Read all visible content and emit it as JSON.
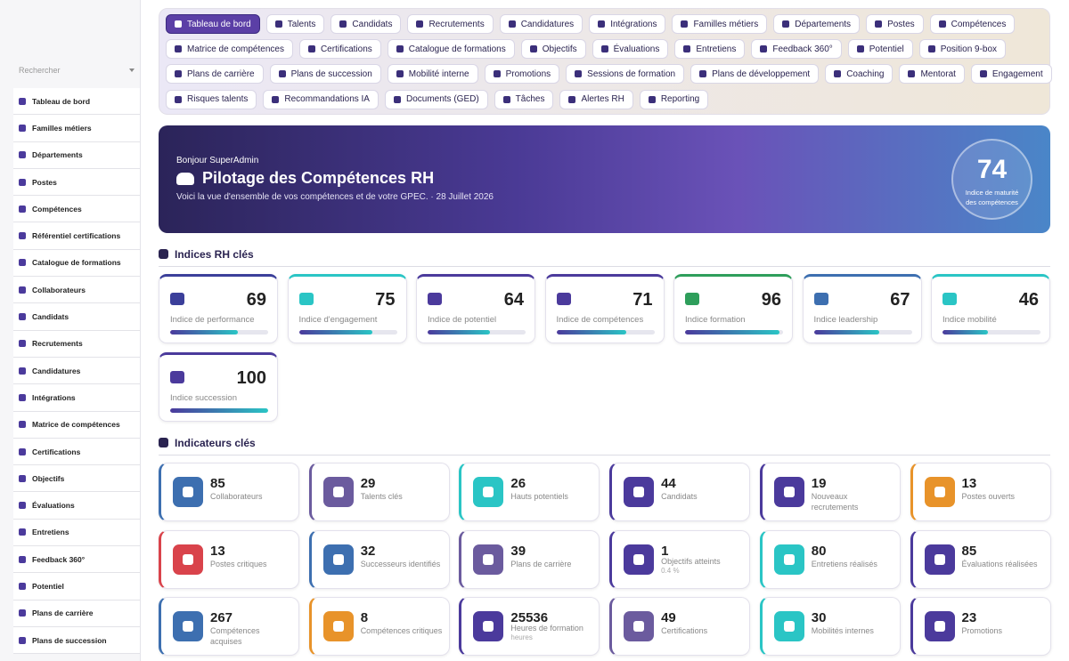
{
  "sidebar": {
    "search_placeholder": "Rechercher",
    "items": [
      "Tableau de bord",
      "Familles métiers",
      "Départements",
      "Postes",
      "Compétences",
      "Référentiel certifications",
      "Catalogue de formations",
      "Collaborateurs",
      "Candidats",
      "Recrutements",
      "Candidatures",
      "Intégrations",
      "Matrice de compétences",
      "Certifications",
      "Objectifs",
      "Évaluations",
      "Entretiens",
      "Feedback 360°",
      "Potentiel",
      "Plans de carrière",
      "Plans de succession"
    ]
  },
  "nav": {
    "rows": [
      [
        "Tableau de bord",
        "Talents",
        "Candidats",
        "Recrutements",
        "Candidatures",
        "Intégrations",
        "Familles métiers",
        "Départements",
        "Postes",
        "Compétences"
      ],
      [
        "Matrice de compétences",
        "Certifications",
        "Catalogue de formations",
        "Objectifs",
        "Évaluations",
        "Entretiens",
        "Feedback 360°",
        "Potentiel",
        "Position 9-box"
      ],
      [
        "Plans de carrière",
        "Plans de succession",
        "Mobilité interne",
        "Promotions",
        "Sessions de formation",
        "Plans de développement",
        "Coaching",
        "Mentorat",
        "Engagement"
      ],
      [
        "Risques talents",
        "Recommandations IA",
        "Documents (GED)",
        "Tâches",
        "Alertes RH",
        "Reporting"
      ]
    ]
  },
  "hero": {
    "greeting": "Bonjour SuperAdmin",
    "title": "Pilotage des Compétences RH",
    "subtitle": "Voici la vue d'ensemble de vos compétences et de votre GPEC. · 28 Juillet 2026",
    "score": 74,
    "score_label": "Indice de maturité des compétences"
  },
  "indices": {
    "title": "Indices RH clés",
    "cards": [
      {
        "value": 69,
        "label": "Indice de performance",
        "color": "#3b3f9a"
      },
      {
        "value": 75,
        "label": "Indice d'engagement",
        "color": "#2ac5c5"
      },
      {
        "value": 64,
        "label": "Indice de potentiel",
        "color": "#4b3a9c"
      },
      {
        "value": 71,
        "label": "Indice de compétences",
        "color": "#4b3a9c"
      },
      {
        "value": 96,
        "label": "Indice formation",
        "color": "#2e9e5b"
      },
      {
        "value": 67,
        "label": "Indice leadership",
        "color": "#3d6fb0"
      },
      {
        "value": 46,
        "label": "Indice mobilité",
        "color": "#2ac5c5"
      },
      {
        "value": 100,
        "label": "Indice succession",
        "color": "#4b3a9c"
      }
    ]
  },
  "indicators": {
    "title": "Indicateurs clés",
    "cards": [
      {
        "value": 85,
        "label": "Collaborateurs",
        "color": "#3d6fb0"
      },
      {
        "value": 29,
        "label": "Talents clés",
        "color": "#6b5b9e"
      },
      {
        "value": 26,
        "label": "Hauts potentiels",
        "color": "#2ac5c5"
      },
      {
        "value": 44,
        "label": "Candidats",
        "color": "#4b3a9c"
      },
      {
        "value": 19,
        "label": "Nouveaux recrutements",
        "color": "#4b3a9c"
      },
      {
        "value": 13,
        "label": "Postes ouverts",
        "color": "#e8932a"
      },
      {
        "value": 13,
        "label": "Postes critiques",
        "color": "#d9434b"
      },
      {
        "value": 32,
        "label": "Successeurs identifiés",
        "color": "#3d6fb0"
      },
      {
        "value": 39,
        "label": "Plans de carrière",
        "color": "#6b5b9e"
      },
      {
        "value": 1,
        "label": "Objectifs atteints",
        "sub": "0.4 %",
        "color": "#4b3a9c"
      },
      {
        "value": 80,
        "label": "Entretiens réalisés",
        "color": "#2ac5c5"
      },
      {
        "value": 85,
        "label": "Évaluations réalisées",
        "color": "#4b3a9c"
      },
      {
        "value": 267,
        "label": "Compétences acquises",
        "color": "#3d6fb0"
      },
      {
        "value": 8,
        "label": "Compétences critiques",
        "color": "#e8932a"
      },
      {
        "value": 25536,
        "label": "Heures de formation",
        "sub": "heures",
        "color": "#4b3a9c"
      },
      {
        "value": 49,
        "label": "Certifications",
        "color": "#6b5b9e"
      },
      {
        "value": 30,
        "label": "Mobilités internes",
        "color": "#2ac5c5"
      },
      {
        "value": 23,
        "label": "Promotions",
        "color": "#4b3a9c"
      }
    ]
  }
}
